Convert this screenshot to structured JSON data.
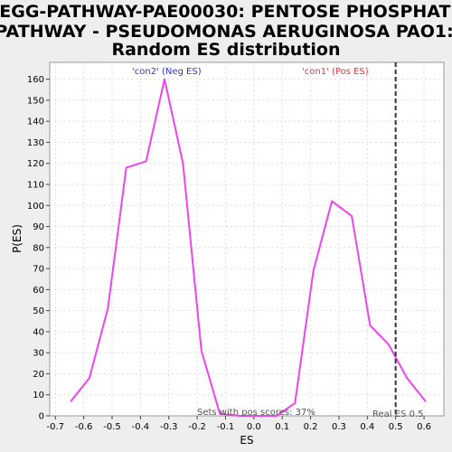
{
  "chart_data": {
    "type": "line",
    "title_lines": [
      "KEGG-PATHWAY-PAE00030: PENTOSE PHOSPHATE",
      "PATHWAY - PSEUDOMONAS AERUGINOSA PAO1:",
      "Random ES distribution"
    ],
    "xlabel": "ES",
    "ylabel": "P(ES)",
    "xlim": [
      -0.72,
      0.67
    ],
    "ylim": [
      0,
      168
    ],
    "xticks": [
      "-0.7",
      "-0.6",
      "-0.5",
      "-0.4",
      "-0.3",
      "-0.2",
      "-0.1",
      "0.0",
      "0.1",
      "0.2",
      "0.3",
      "0.4",
      "0.5",
      "0.6"
    ],
    "yticks": [
      "0",
      "10",
      "20",
      "30",
      "40",
      "50",
      "60",
      "70",
      "80",
      "90",
      "100",
      "110",
      "120",
      "130",
      "140",
      "150",
      "160"
    ],
    "grid": true,
    "series": [
      {
        "color": "#ee44ee",
        "x": [
          -0.645,
          -0.58,
          -0.515,
          -0.45,
          -0.38,
          -0.315,
          -0.25,
          -0.185,
          -0.12,
          -0.05,
          0.01,
          0.08,
          0.145,
          0.21,
          0.275,
          0.345,
          0.41,
          0.475,
          0.54,
          0.605
        ],
        "y": [
          7,
          18,
          51,
          118,
          121,
          160,
          120,
          31,
          1,
          0,
          0,
          0,
          6,
          69,
          102,
          95,
          43,
          34,
          18,
          7
        ]
      }
    ],
    "reference_line": {
      "x": 0.5,
      "label": "Real ES 0.5"
    },
    "annotations": {
      "neg_label": "'con2' (Neg ES)",
      "pos_label": "'con1' (Pos ES)",
      "pos_scores": "Sets with pos scores: 37%"
    },
    "colors": {
      "line": "#ee44ee",
      "neg_label": "#3333dd",
      "pos_label": "#ee3333",
      "grid": "#dddddd",
      "reference_line": "#333333"
    }
  }
}
